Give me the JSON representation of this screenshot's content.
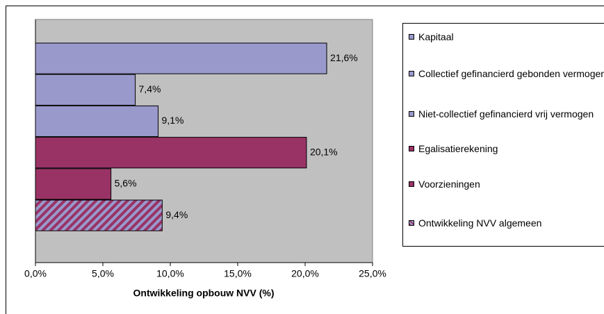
{
  "chart_data": {
    "type": "bar",
    "orientation": "horizontal",
    "x_label": "Ontwikkeling opbouw NVV (%)",
    "categories": [
      "Kapitaal",
      "Collectief gefinancierd gebonden vermogen",
      "Niet-collectief gefinancierd vrij vermogen",
      "Egalisatierekening",
      "Voorzieningen",
      "Ontwikkeling NVV algemeen"
    ],
    "values": [
      21.6,
      7.4,
      9.1,
      20.1,
      5.6,
      9.4
    ],
    "value_labels": [
      "21,6%",
      "7,4%",
      "9,1%",
      "20,1%",
      "5,6%",
      "9,4%"
    ],
    "colors": [
      "#9999cc",
      "#9999cc",
      "#9999cc",
      "#993366",
      "#993366",
      "#993366"
    ],
    "hatched": [
      false,
      false,
      false,
      false,
      false,
      true
    ],
    "hatch_color": "#9999cc",
    "xlim": [
      0,
      25
    ],
    "xticks": [
      {
        "value": 0,
        "label": "0,0%"
      },
      {
        "value": 5,
        "label": "5,0%"
      },
      {
        "value": 10,
        "label": "10,0%"
      },
      {
        "value": 15,
        "label": "15,0%"
      },
      {
        "value": 20,
        "label": "20,0%"
      },
      {
        "value": 25,
        "label": "25,0%"
      }
    ],
    "plot_background": "#c0c0c0",
    "legend": "right"
  }
}
